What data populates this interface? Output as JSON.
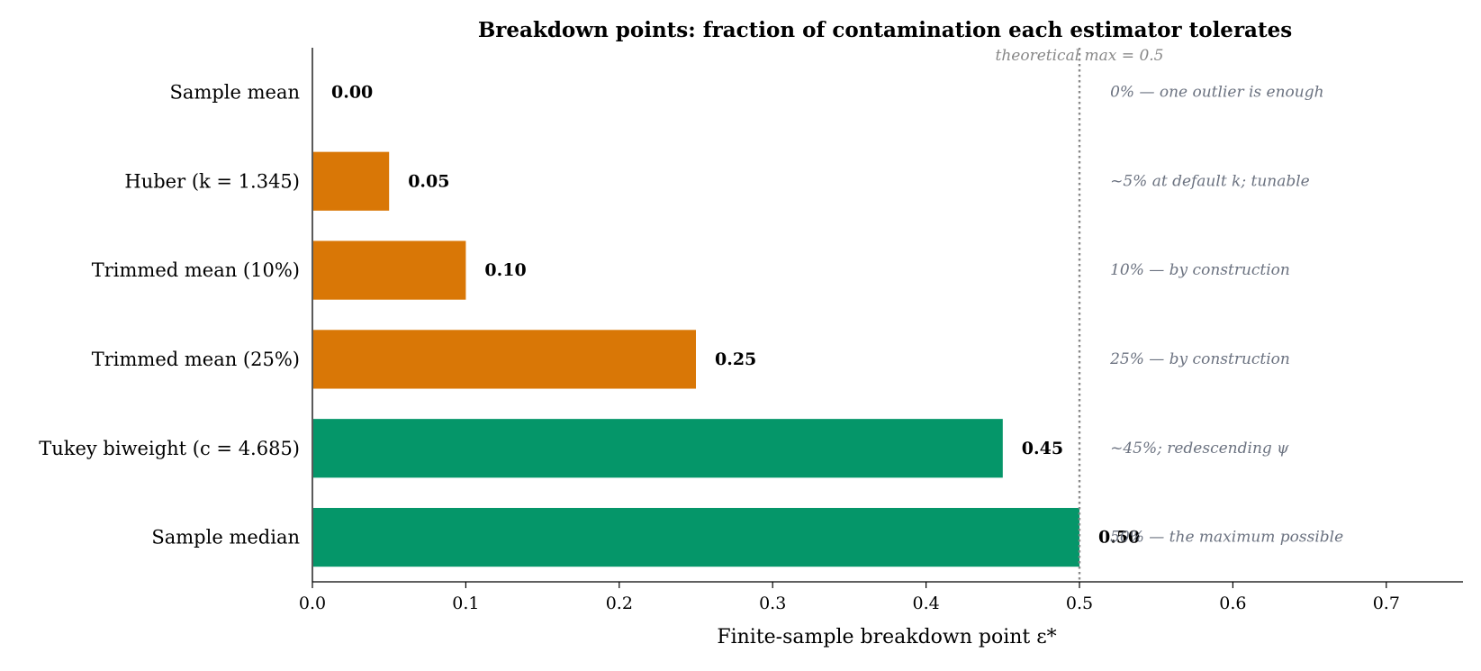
{
  "chart_data": {
    "type": "bar",
    "orientation": "horizontal",
    "title": "Breakdown points: fraction of contamination each estimator tolerates",
    "xlabel": "Finite-sample breakdown point ε*",
    "ylabel": "",
    "xlim": [
      0,
      0.75
    ],
    "xticks": [
      "0.0",
      "0.1",
      "0.2",
      "0.3",
      "0.4",
      "0.5",
      "0.6",
      "0.7"
    ],
    "xtick_values": [
      0,
      0.1,
      0.2,
      0.3,
      0.4,
      0.5,
      0.6,
      0.7
    ],
    "grid": false,
    "categories": [
      "Sample mean",
      "Huber (k = 1.345)",
      "Trimmed mean (10%)",
      "Trimmed mean (25%)",
      "Tukey biweight (c = 4.685)",
      "Sample median"
    ],
    "values": [
      0.0,
      0.05,
      0.1,
      0.25,
      0.45,
      0.5
    ],
    "value_labels": [
      "0.00",
      "0.05",
      "0.10",
      "0.25",
      "0.45",
      "0.50"
    ],
    "bar_colors": [
      "#d97706",
      "#d97706",
      "#d97706",
      "#d97706",
      "#059669",
      "#059669"
    ],
    "annotations": [
      "0% — one outlier is enough",
      "~5% at default k; tunable",
      "10% — by construction",
      "25% — by construction",
      "~45%; redescending ψ",
      "50% — the maximum possible"
    ],
    "annotation_color": "#6b7280",
    "reference_line": {
      "x": 0.5,
      "label": "theoretical max = 0.5",
      "color": "#888888",
      "style": "dotted"
    }
  }
}
